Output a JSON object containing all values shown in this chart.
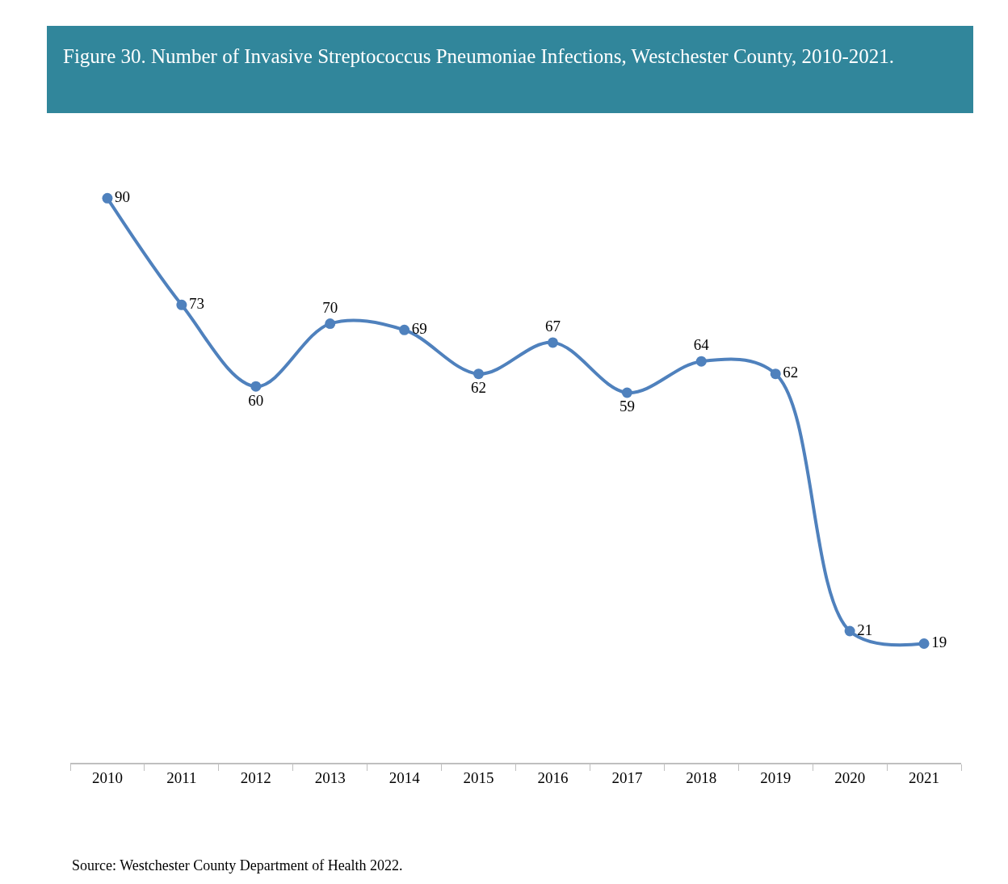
{
  "chart_data": {
    "type": "line",
    "title": "Figure 30.  Number of Invasive Streptococcus Pneumoniae Infections, Westchester County, 2010-2021.",
    "categories": [
      "2010",
      "2011",
      "2012",
      "2013",
      "2014",
      "2015",
      "2016",
      "2017",
      "2018",
      "2019",
      "2020",
      "2021"
    ],
    "series": [
      {
        "color": "#4f81bd",
        "values": [
          90,
          73,
          60,
          70,
          69,
          62,
          67,
          59,
          64,
          62,
          21,
          19
        ]
      }
    ],
    "tick_labels": "x",
    "marker": "circle",
    "line_style": "solid",
    "data_labels": true,
    "annotations": [
      "Source: Westchester County Department of Health 2022."
    ]
  }
}
